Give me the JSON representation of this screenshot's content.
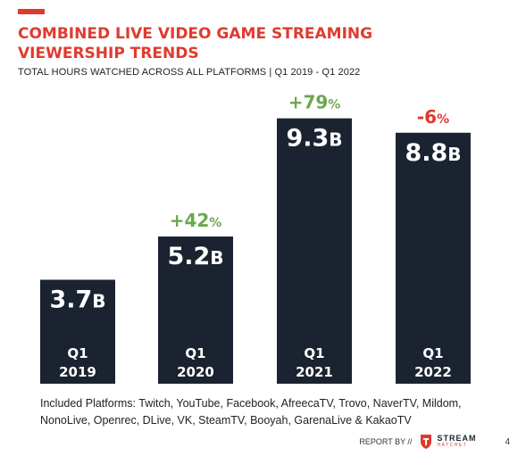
{
  "header": {
    "title_line1": "COMBINED LIVE VIDEO GAME STREAMING",
    "title_line2": "VIEWERSHIP TRENDS",
    "subtitle": "TOTAL HOURS WATCHED ACROSS ALL PLATFORMS | Q1 2019 - Q1 2022"
  },
  "colors": {
    "accent": "#e03a2f",
    "bar": "#1b2330",
    "positive": "#6aa84f",
    "negative": "#e03a2f"
  },
  "chart_data": {
    "type": "bar",
    "categories": [
      "Q1 2019",
      "Q1 2020",
      "Q1 2021",
      "Q1 2022"
    ],
    "category_lines": [
      [
        "Q1",
        "2019"
      ],
      [
        "Q1",
        "2020"
      ],
      [
        "Q1",
        "2021"
      ],
      [
        "Q1",
        "2022"
      ]
    ],
    "values": [
      3.7,
      5.2,
      9.3,
      8.8
    ],
    "value_labels": [
      {
        "number": "3.7",
        "unit": "B"
      },
      {
        "number": "5.2",
        "unit": "B"
      },
      {
        "number": "9.3",
        "unit": "B"
      },
      {
        "number": "8.8",
        "unit": "B"
      }
    ],
    "changes": [
      null,
      {
        "number": "+42",
        "unit": "%",
        "direction": "up"
      },
      {
        "number": "+79",
        "unit": "%",
        "direction": "up"
      },
      {
        "number": "-6",
        "unit": "%",
        "direction": "down"
      }
    ],
    "title": "COMBINED LIVE VIDEO GAME STREAMING VIEWERSHIP TRENDS",
    "grid": false,
    "legend": "none"
  },
  "footnote": {
    "line1": "Included Platforms: Twitch, YouTube, Facebook, AfreecaTV, Trovo, NaverTV, Mildom,",
    "line2": "NonoLive, Openrec, DLive, VK, SteamTV, Booyah, GarenaLive & KakaoTV"
  },
  "footer": {
    "report_by": "REPORT BY //",
    "logo_main": "STREAM",
    "logo_sub": "HATCHET",
    "logo_icon": "stream-hatchet-logo-icon",
    "page_number": "4"
  }
}
